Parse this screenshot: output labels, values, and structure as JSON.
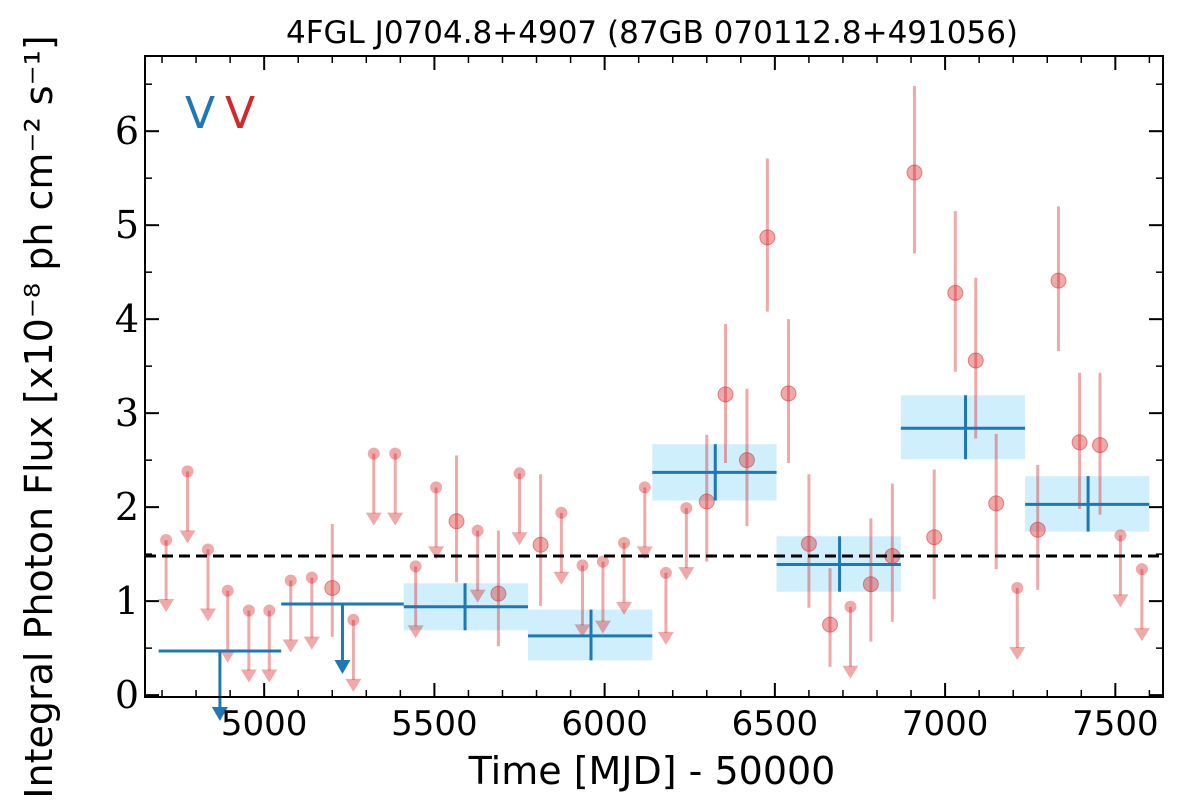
{
  "chart_data": {
    "type": "scatter",
    "title": "4FGL J0704.8+4907 (87GB 070112.8+491056)",
    "xlabel": "Time [MJD] - 50000",
    "ylabel": "Integral Photon Flux [x10⁻⁸ ph cm⁻² s⁻¹]",
    "xlim": [
      4650,
      7640
    ],
    "ylim": [
      -0.02,
      6.8
    ],
    "xticks": [
      5000,
      5500,
      6000,
      6500,
      7000,
      7500
    ],
    "yticks": [
      0,
      1,
      2,
      3,
      4,
      5,
      6
    ],
    "grid": false,
    "legend": {
      "placement": "top-left",
      "markers": [
        {
          "text": "V",
          "color": "#1f77b4"
        },
        {
          "text": "V",
          "color": "#d62728"
        }
      ]
    },
    "mean_level": 1.48,
    "colors": {
      "blue": "#1f77b4",
      "red": "#d62728",
      "band": "#cfeffc"
    },
    "series": [
      {
        "kind": "binned",
        "points": [
          {
            "x": 4870,
            "x0": 4690,
            "x1": 5050,
            "y": 0.47,
            "upper_limit": true
          },
          {
            "x": 5230,
            "x0": 5050,
            "x1": 5410,
            "y": 0.97,
            "upper_limit": true
          },
          {
            "x": 5590,
            "x0": 5410,
            "x1": 5775,
            "y": 0.94,
            "ylo": 0.69,
            "yhi": 1.19
          },
          {
            "x": 5960,
            "x0": 5775,
            "x1": 6140,
            "y": 0.63,
            "ylo": 0.37,
            "yhi": 0.91
          },
          {
            "x": 6325,
            "x0": 6140,
            "x1": 6505,
            "y": 2.37,
            "ylo": 2.07,
            "yhi": 2.67
          },
          {
            "x": 6690,
            "x0": 6505,
            "x1": 6870,
            "y": 1.39,
            "ylo": 1.1,
            "yhi": 1.69
          },
          {
            "x": 7060,
            "x0": 6870,
            "x1": 7235,
            "y": 2.84,
            "ylo": 2.51,
            "yhi": 3.19
          },
          {
            "x": 7420,
            "x0": 7235,
            "x1": 7600,
            "y": 2.03,
            "ylo": 1.74,
            "yhi": 2.33
          }
        ]
      },
      {
        "kind": "monthly",
        "points": [
          {
            "x": 4712,
            "y": 1.65,
            "upper_limit": true
          },
          {
            "x": 4775,
            "y": 2.38,
            "upper_limit": true
          },
          {
            "x": 4835,
            "y": 1.55,
            "upper_limit": true
          },
          {
            "x": 4893,
            "y": 1.11,
            "upper_limit": true
          },
          {
            "x": 4955,
            "y": 0.9,
            "upper_limit": true
          },
          {
            "x": 5015,
            "y": 0.9,
            "upper_limit": true
          },
          {
            "x": 5078,
            "y": 1.22,
            "upper_limit": true
          },
          {
            "x": 5140,
            "y": 1.25,
            "upper_limit": true
          },
          {
            "x": 5200,
            "y": 1.14,
            "ylo": 0.62,
            "yhi": 1.82
          },
          {
            "x": 5262,
            "y": 0.8,
            "upper_limit": true
          },
          {
            "x": 5322,
            "y": 2.57,
            "upper_limit": true
          },
          {
            "x": 5385,
            "y": 2.57,
            "upper_limit": true
          },
          {
            "x": 5445,
            "y": 1.37,
            "upper_limit": true
          },
          {
            "x": 5505,
            "y": 2.21,
            "upper_limit": true
          },
          {
            "x": 5565,
            "y": 1.85,
            "ylo": 1.2,
            "yhi": 2.55
          },
          {
            "x": 5627,
            "y": 1.75,
            "upper_limit": true
          },
          {
            "x": 5688,
            "y": 1.08,
            "ylo": 0.52,
            "yhi": 1.75
          },
          {
            "x": 5750,
            "y": 2.36,
            "upper_limit": true
          },
          {
            "x": 5812,
            "y": 1.6,
            "ylo": 0.95,
            "yhi": 2.35
          },
          {
            "x": 5873,
            "y": 1.94,
            "upper_limit": true
          },
          {
            "x": 5935,
            "y": 1.38,
            "upper_limit": true
          },
          {
            "x": 5995,
            "y": 1.42,
            "upper_limit": true
          },
          {
            "x": 6057,
            "y": 1.62,
            "upper_limit": true
          },
          {
            "x": 6118,
            "y": 2.21,
            "upper_limit": true
          },
          {
            "x": 6180,
            "y": 1.3,
            "upper_limit": true
          },
          {
            "x": 6240,
            "y": 1.99,
            "upper_limit": true
          },
          {
            "x": 6300,
            "y": 2.06,
            "ylo": 1.42,
            "yhi": 2.77
          },
          {
            "x": 6355,
            "y": 3.2,
            "ylo": 2.47,
            "yhi": 3.95
          },
          {
            "x": 6418,
            "y": 2.5,
            "ylo": 1.8,
            "yhi": 3.26
          },
          {
            "x": 6478,
            "y": 4.87,
            "ylo": 4.08,
            "yhi": 5.71
          },
          {
            "x": 6540,
            "y": 3.21,
            "ylo": 2.47,
            "yhi": 4.0
          },
          {
            "x": 6600,
            "y": 1.61,
            "ylo": 0.93,
            "yhi": 2.35
          },
          {
            "x": 6662,
            "y": 0.75,
            "ylo": 0.3,
            "yhi": 1.35
          },
          {
            "x": 6722,
            "y": 0.94,
            "upper_limit": true
          },
          {
            "x": 6782,
            "y": 1.18,
            "ylo": 0.57,
            "yhi": 1.88
          },
          {
            "x": 6845,
            "y": 1.48,
            "ylo": 0.78,
            "yhi": 2.25
          },
          {
            "x": 6910,
            "y": 5.56,
            "ylo": 4.7,
            "yhi": 6.48
          },
          {
            "x": 6968,
            "y": 1.68,
            "ylo": 1.02,
            "yhi": 2.4
          },
          {
            "x": 7030,
            "y": 4.28,
            "ylo": 3.44,
            "yhi": 5.15
          },
          {
            "x": 7090,
            "y": 3.56,
            "ylo": 2.73,
            "yhi": 4.44
          },
          {
            "x": 7150,
            "y": 2.04,
            "ylo": 1.34,
            "yhi": 2.78
          },
          {
            "x": 7212,
            "y": 1.14,
            "upper_limit": true
          },
          {
            "x": 7272,
            "y": 1.76,
            "ylo": 1.12,
            "yhi": 2.45
          },
          {
            "x": 7333,
            "y": 4.41,
            "ylo": 3.66,
            "yhi": 5.2
          },
          {
            "x": 7395,
            "y": 2.69,
            "ylo": 1.98,
            "yhi": 3.43
          },
          {
            "x": 7455,
            "y": 2.66,
            "ylo": 1.92,
            "yhi": 3.43
          },
          {
            "x": 7515,
            "y": 1.7,
            "upper_limit": true
          },
          {
            "x": 7578,
            "y": 1.34,
            "upper_limit": true
          }
        ]
      }
    ]
  }
}
